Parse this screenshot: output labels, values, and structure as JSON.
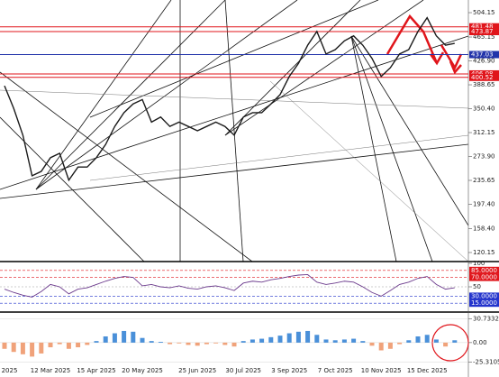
{
  "chart_data": [
    {
      "type": "line",
      "categories": [
        "eb 2025",
        null,
        null,
        null,
        null,
        "12 Mar 2025",
        null,
        null,
        null,
        null,
        "15 Apr 2025",
        null,
        null,
        null,
        null,
        "20 May 2025",
        null,
        null,
        null,
        null,
        null,
        "25 Jun 2025",
        null,
        null,
        null,
        null,
        "30 Jul 2025",
        null,
        null,
        null,
        null,
        "3 Sep 2025",
        null,
        null,
        null,
        null,
        "7 Oct 2025",
        null,
        null,
        null,
        null,
        "10 Nov 2025",
        null,
        null,
        null,
        null,
        "15 Dec 2025",
        null,
        null,
        null
      ],
      "values": [
        387,
        351,
        308,
        243,
        250,
        272,
        279,
        236,
        257,
        257,
        272,
        293,
        322,
        344,
        358,
        365,
        329,
        337,
        322,
        329,
        322,
        315,
        322,
        329,
        322,
        308,
        337,
        344,
        344,
        358,
        373,
        402,
        423,
        452,
        474,
        438,
        445,
        459,
        467,
        452,
        431,
        402,
        416,
        438,
        445,
        474,
        496,
        467,
        452,
        455
      ],
      "color": "#1a1a1a",
      "ylim": [
        105.7,
        524.4
      ],
      "yticks": [
        {
          "value": 504.15,
          "label": "504.15"
        },
        {
          "value": 465.15,
          "label": "465.15"
        },
        {
          "value": 426.9,
          "label": "426.90"
        },
        {
          "value": 388.65,
          "label": "388.65"
        },
        {
          "value": 350.4,
          "label": "350.40"
        },
        {
          "value": 312.15,
          "label": "312.15"
        },
        {
          "value": 273.9,
          "label": "273.90"
        },
        {
          "value": 235.65,
          "label": "235.65"
        },
        {
          "value": 197.4,
          "label": "197.40"
        },
        {
          "value": 158.4,
          "label": "158.40"
        },
        {
          "value": 120.15,
          "label": "120.15"
        }
      ],
      "levels": [
        {
          "value": 481.48,
          "label": "481.48",
          "color": "#e0151b"
        },
        {
          "value": 473.87,
          "label": "473.87",
          "color": "#e0151b"
        },
        {
          "value": 437.03,
          "label": "437.03",
          "color": "#2233aa"
        },
        {
          "value": 406.08,
          "label": "406.08",
          "color": "#e0151b"
        },
        {
          "value": 400.52,
          "label": "400.52",
          "color": "#e0151b"
        }
      ]
    },
    {
      "type": "line",
      "values": [
        45,
        38,
        32,
        28,
        40,
        55,
        50,
        35,
        45,
        48,
        55,
        62,
        68,
        72,
        70,
        52,
        55,
        50,
        48,
        52,
        47,
        45,
        50,
        52,
        48,
        42,
        58,
        62,
        60,
        65,
        68,
        72,
        75,
        76,
        60,
        55,
        58,
        62,
        60,
        50,
        38,
        30,
        42,
        55,
        60,
        68,
        72,
        55,
        45,
        48
      ],
      "color": "#6b3a8c",
      "ylim": [
        0,
        100
      ],
      "yticks": [
        100,
        50
      ],
      "levels": [
        {
          "value": 85,
          "label": "85.0000",
          "color": "#e0151b"
        },
        {
          "value": 70,
          "label": "70.0000",
          "color": "#e0151b"
        },
        {
          "value": 30,
          "label": "30.0000",
          "color": "#2233cc"
        },
        {
          "value": 15,
          "label": "15.0000",
          "color": "#2233cc"
        }
      ]
    },
    {
      "type": "bar",
      "values": [
        -8,
        -12,
        -15,
        -18,
        -14,
        -6,
        -2,
        -8,
        -6,
        -3,
        2,
        8,
        12,
        15,
        14,
        6,
        2,
        1,
        -2,
        -1,
        -3,
        -4,
        -2,
        -1,
        -3,
        -5,
        2,
        4,
        5,
        7,
        9,
        12,
        14,
        15,
        10,
        4,
        3,
        4,
        5,
        2,
        -4,
        -10,
        -8,
        -2,
        3,
        8,
        10,
        4,
        -5,
        3
      ],
      "colors": {
        "positive": "#4a90d9",
        "negative": "#f0a27a"
      },
      "ylim": [
        -28,
        37
      ],
      "yticks": [
        {
          "value": 30.7332,
          "label": "30.7332"
        },
        {
          "value": 0,
          "label": "0.00"
        },
        {
          "value": -25.3105,
          "label": "-25.3105"
        }
      ]
    }
  ]
}
